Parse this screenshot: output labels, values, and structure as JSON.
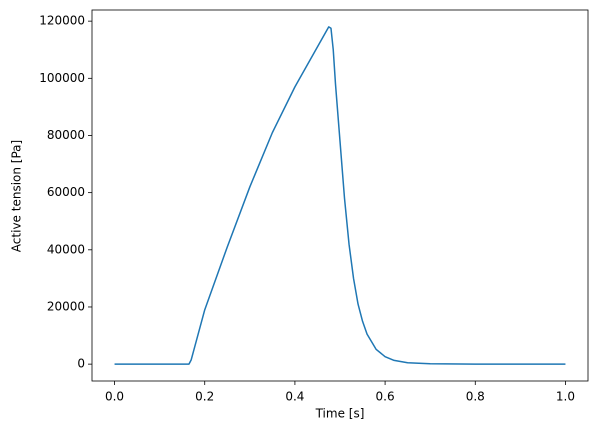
{
  "chart_data": {
    "type": "line",
    "x_label": "Time [s]",
    "y_label": "Active tension [Pa]",
    "x": [
      0,
      0.1,
      0.165,
      0.17,
      0.2,
      0.25,
      0.3,
      0.35,
      0.4,
      0.45,
      0.475,
      0.48,
      0.485,
      0.49,
      0.5,
      0.51,
      0.52,
      0.53,
      0.54,
      0.55,
      0.56,
      0.58,
      0.6,
      0.62,
      0.65,
      0.7,
      0.8,
      1.0
    ],
    "series": [
      {
        "color": "#1f77b4",
        "values": [
          0,
          0,
          0,
          1500,
          19000,
          41000,
          62000,
          81000,
          97000,
          111000,
          118000,
          117500,
          110000,
          98000,
          78000,
          58000,
          42000,
          30000,
          21000,
          15000,
          10500,
          5200,
          2600,
          1300,
          500,
          150,
          10,
          0
        ]
      }
    ],
    "xlim": [
      -0.05,
      1.05
    ],
    "ylim": [
      -5900,
      123900
    ],
    "xticks": [
      {
        "value": 0,
        "label": "0.0"
      },
      0.2,
      0.4,
      0.6,
      0.8,
      {
        "value": 1,
        "label": "1.0"
      }
    ],
    "yticks": [
      0,
      20000,
      40000,
      60000,
      80000,
      100000,
      120000
    ],
    "grid": false
  }
}
